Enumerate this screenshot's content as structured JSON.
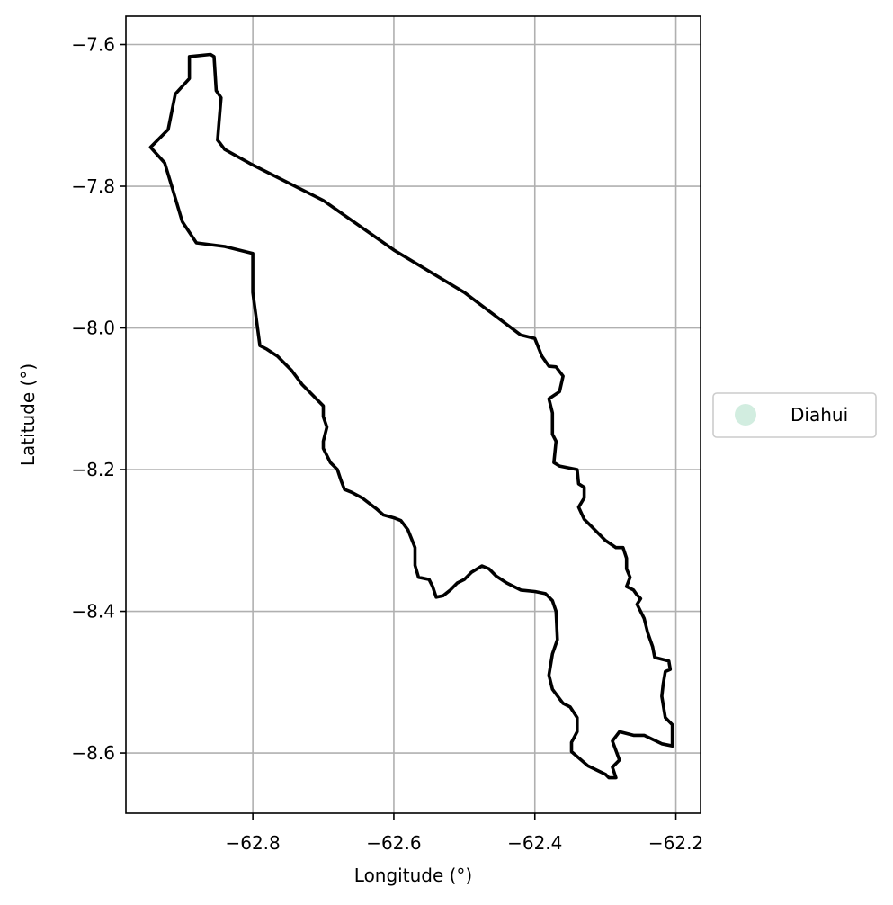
{
  "chart_data": {
    "type": "map",
    "xlabel": "Longitude (°)",
    "ylabel": "Latitude (°)",
    "xlim": [
      -62.98,
      -62.165
    ],
    "ylim": [
      -8.685,
      -7.56
    ],
    "xticks": [
      -62.8,
      -62.6,
      -62.4,
      -62.2
    ],
    "xtick_labels": [
      "−62.8",
      "−62.6",
      "−62.4",
      "−62.2"
    ],
    "yticks": [
      -7.6,
      -7.8,
      -8.0,
      -8.2,
      -8.4,
      -8.6
    ],
    "ytick_labels": [
      "−7.6",
      "−7.8",
      "−8.0",
      "−8.2",
      "−8.4",
      "−8.6"
    ],
    "grid": true,
    "legend": {
      "placement": "right",
      "entries": [
        {
          "label": "Diahui",
          "color": "#d2ede0"
        }
      ]
    },
    "region": {
      "name": "Diahui",
      "fill": "#ffffff",
      "edge_color": "#000000",
      "boundary": [
        [
          -62.89,
          -7.617
        ],
        [
          -62.86,
          -7.614
        ],
        [
          -62.855,
          -7.617
        ],
        [
          -62.852,
          -7.665
        ],
        [
          -62.845,
          -7.675
        ],
        [
          -62.848,
          -7.71
        ],
        [
          -62.85,
          -7.735
        ],
        [
          -62.846,
          -7.74
        ],
        [
          -62.84,
          -7.748
        ],
        [
          -62.8,
          -7.77
        ],
        [
          -62.7,
          -7.82
        ],
        [
          -62.6,
          -7.89
        ],
        [
          -62.5,
          -7.95
        ],
        [
          -62.42,
          -8.01
        ],
        [
          -62.4,
          -8.015
        ],
        [
          -62.39,
          -8.04
        ],
        [
          -62.38,
          -8.054
        ],
        [
          -62.37,
          -8.055
        ],
        [
          -62.36,
          -8.068
        ],
        [
          -62.365,
          -8.09
        ],
        [
          -62.38,
          -8.1
        ],
        [
          -62.375,
          -8.12
        ],
        [
          -62.375,
          -8.15
        ],
        [
          -62.37,
          -8.16
        ],
        [
          -62.373,
          -8.19
        ],
        [
          -62.365,
          -8.195
        ],
        [
          -62.35,
          -8.198
        ],
        [
          -62.34,
          -8.2
        ],
        [
          -62.338,
          -8.22
        ],
        [
          -62.33,
          -8.225
        ],
        [
          -62.33,
          -8.24
        ],
        [
          -62.338,
          -8.253
        ],
        [
          -62.33,
          -8.27
        ],
        [
          -62.32,
          -8.28
        ],
        [
          -62.31,
          -8.29
        ],
        [
          -62.3,
          -8.3
        ],
        [
          -62.285,
          -8.31
        ],
        [
          -62.275,
          -8.31
        ],
        [
          -62.27,
          -8.325
        ],
        [
          -62.27,
          -8.34
        ],
        [
          -62.265,
          -8.352
        ],
        [
          -62.27,
          -8.365
        ],
        [
          -62.26,
          -8.37
        ],
        [
          -62.255,
          -8.377
        ],
        [
          -62.25,
          -8.382
        ],
        [
          -62.255,
          -8.39
        ],
        [
          -62.245,
          -8.41
        ],
        [
          -62.24,
          -8.43
        ],
        [
          -62.233,
          -8.45
        ],
        [
          -62.23,
          -8.465
        ],
        [
          -62.21,
          -8.47
        ],
        [
          -62.208,
          -8.482
        ],
        [
          -62.215,
          -8.485
        ],
        [
          -62.218,
          -8.503
        ],
        [
          -62.22,
          -8.52
        ],
        [
          -62.215,
          -8.55
        ],
        [
          -62.205,
          -8.56
        ],
        [
          -62.205,
          -8.59
        ],
        [
          -62.22,
          -8.587
        ],
        [
          -62.245,
          -8.575
        ],
        [
          -62.26,
          -8.575
        ],
        [
          -62.28,
          -8.57
        ],
        [
          -62.29,
          -8.583
        ],
        [
          -62.28,
          -8.61
        ],
        [
          -62.29,
          -8.62
        ],
        [
          -62.285,
          -8.635
        ],
        [
          -62.295,
          -8.635
        ],
        [
          -62.3,
          -8.63
        ],
        [
          -62.325,
          -8.618
        ],
        [
          -62.34,
          -8.605
        ],
        [
          -62.348,
          -8.598
        ],
        [
          -62.348,
          -8.585
        ],
        [
          -62.34,
          -8.57
        ],
        [
          -62.34,
          -8.55
        ],
        [
          -62.35,
          -8.535
        ],
        [
          -62.36,
          -8.53
        ],
        [
          -62.375,
          -8.51
        ],
        [
          -62.38,
          -8.49
        ],
        [
          -62.375,
          -8.46
        ],
        [
          -62.368,
          -8.44
        ],
        [
          -62.37,
          -8.4
        ],
        [
          -62.375,
          -8.385
        ],
        [
          -62.385,
          -8.375
        ],
        [
          -62.4,
          -8.372
        ],
        [
          -62.42,
          -8.37
        ],
        [
          -62.44,
          -8.36
        ],
        [
          -62.455,
          -8.35
        ],
        [
          -62.465,
          -8.34
        ],
        [
          -62.475,
          -8.336
        ],
        [
          -62.49,
          -8.345
        ],
        [
          -62.5,
          -8.355
        ],
        [
          -62.51,
          -8.36
        ],
        [
          -62.52,
          -8.37
        ],
        [
          -62.53,
          -8.378
        ],
        [
          -62.54,
          -8.38
        ],
        [
          -62.545,
          -8.365
        ],
        [
          -62.55,
          -8.355
        ],
        [
          -62.565,
          -8.352
        ],
        [
          -62.57,
          -8.335
        ],
        [
          -62.57,
          -8.31
        ],
        [
          -62.58,
          -8.285
        ],
        [
          -62.59,
          -8.272
        ],
        [
          -62.6,
          -8.268
        ],
        [
          -62.615,
          -8.264
        ],
        [
          -62.625,
          -8.255
        ],
        [
          -62.645,
          -8.24
        ],
        [
          -62.66,
          -8.232
        ],
        [
          -62.67,
          -8.228
        ],
        [
          -62.675,
          -8.215
        ],
        [
          -62.68,
          -8.2
        ],
        [
          -62.69,
          -8.19
        ],
        [
          -62.7,
          -8.17
        ],
        [
          -62.7,
          -8.16
        ],
        [
          -62.695,
          -8.14
        ],
        [
          -62.7,
          -8.125
        ],
        [
          -62.7,
          -8.11
        ],
        [
          -62.71,
          -8.1
        ],
        [
          -62.72,
          -8.09
        ],
        [
          -62.73,
          -8.08
        ],
        [
          -62.745,
          -8.06
        ],
        [
          -62.765,
          -8.04
        ],
        [
          -62.78,
          -8.03
        ],
        [
          -62.79,
          -8.025
        ],
        [
          -62.8,
          -7.95
        ],
        [
          -62.8,
          -7.895
        ],
        [
          -62.84,
          -7.885
        ],
        [
          -62.88,
          -7.88
        ],
        [
          -62.9,
          -7.85
        ],
        [
          -62.915,
          -7.8
        ],
        [
          -62.925,
          -7.767
        ],
        [
          -62.945,
          -7.745
        ],
        [
          -62.92,
          -7.72
        ],
        [
          -62.91,
          -7.67
        ],
        [
          -62.89,
          -7.648
        ],
        [
          -62.89,
          -7.617
        ]
      ]
    }
  }
}
